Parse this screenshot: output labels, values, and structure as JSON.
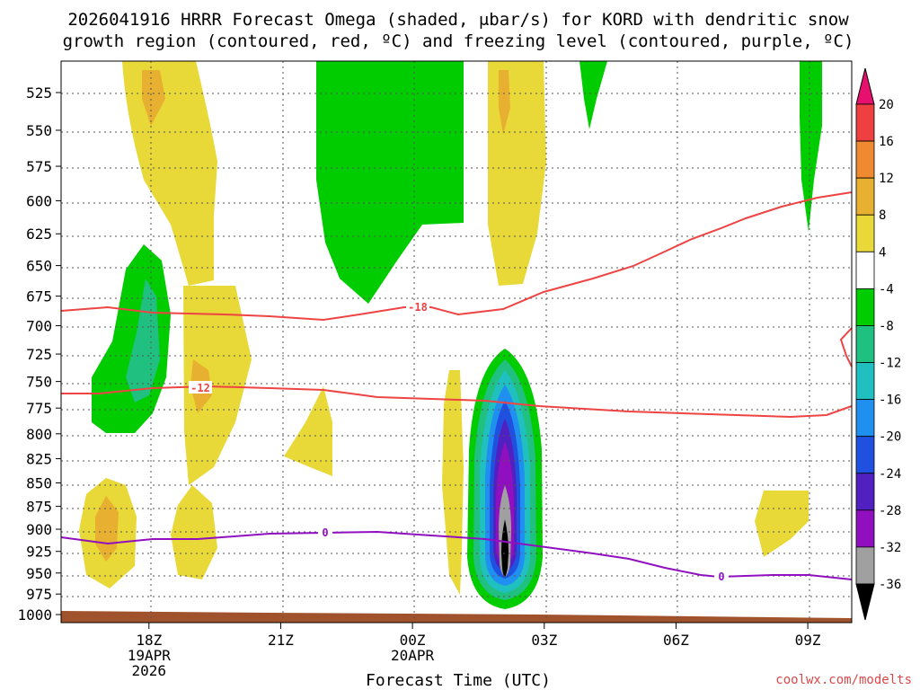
{
  "chart_data": {
    "type": "heatmap",
    "title_line1": "2026041916 HRRR Forecast Omega (shaded, μbar/s) for KORD with dendritic snow",
    "title_line2": "growth region (contoured, red, ºC) and freezing level (contoured, purple, ºC)",
    "xlabel": "Forecast Time (UTC)",
    "y_ticks": [
      "525",
      "550",
      "575",
      "600",
      "625",
      "650",
      "675",
      "700",
      "725",
      "750",
      "775",
      "800",
      "825",
      "850",
      "875",
      "900",
      "925",
      "950",
      "975",
      "1000"
    ],
    "x_ticks": [
      {
        "label": "18Z",
        "sub1": "19APR",
        "sub2": "2026"
      },
      {
        "label": "21Z",
        "sub1": "",
        "sub2": ""
      },
      {
        "label": "00Z",
        "sub1": "20APR",
        "sub2": ""
      },
      {
        "label": "03Z",
        "sub1": "",
        "sub2": ""
      },
      {
        "label": "06Z",
        "sub1": "",
        "sub2": ""
      },
      {
        "label": "09Z",
        "sub1": "",
        "sub2": ""
      }
    ],
    "colorbar_labels": [
      "20",
      "16",
      "12",
      "8",
      "4",
      "-4",
      "-8",
      "-12",
      "-16",
      "-20",
      "-24",
      "-28",
      "-32",
      "-36"
    ],
    "colorbar_colors": [
      "#ee4040",
      "#f08a30",
      "#e8b030",
      "#e8d838",
      "#ffffff",
      "#00cc00",
      "#20c080",
      "#20c0c0",
      "#2090f0",
      "#2050e0",
      "#5020c0",
      "#9010c0",
      "#a0a0a0"
    ],
    "contours": {
      "minus18": {
        "label": "-18",
        "color": "#ee4444"
      },
      "minus12": {
        "label": "-12",
        "color": "#ee4444"
      },
      "freezing": {
        "label": "0",
        "color": "#9010c0"
      }
    },
    "credit": "coolwx.com/modelts"
  }
}
